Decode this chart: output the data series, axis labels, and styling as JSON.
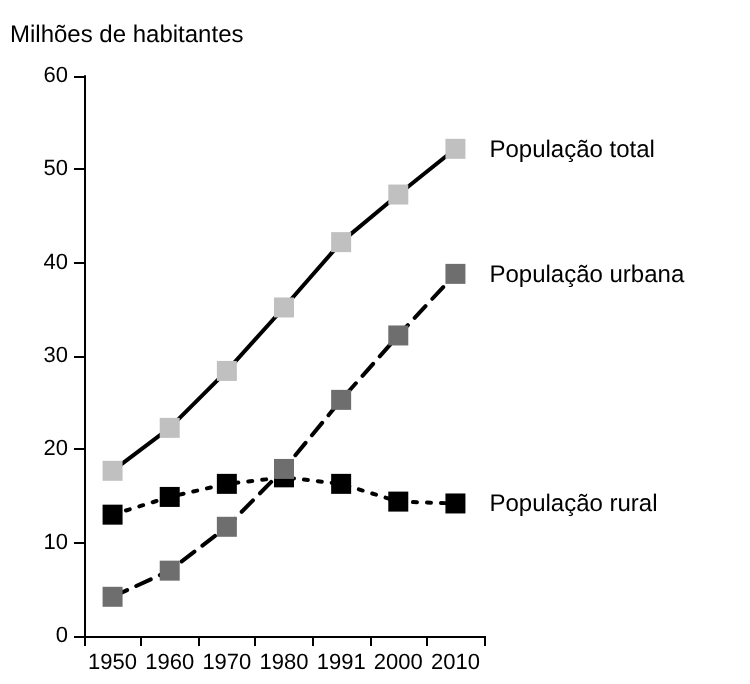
{
  "chart_data": {
    "type": "line",
    "ylabel": "Milhões de habitantes",
    "categories": [
      "1950",
      "1960",
      "1970",
      "1980",
      "1991",
      "2000",
      "2010"
    ],
    "series": [
      {
        "name": "População total",
        "color": "#c0c0c0",
        "line_style": "solid",
        "values": [
          17.7,
          22.3,
          28.4,
          35.2,
          42.2,
          47.3,
          52.2
        ]
      },
      {
        "name": "População urbana",
        "color": "#6e6e6e",
        "line_style": "dashed",
        "values": [
          4.2,
          7.0,
          11.7,
          17.9,
          25.3,
          32.2,
          38.8
        ]
      },
      {
        "name": "População rural",
        "color": "#000000",
        "line_style": "dotted",
        "values": [
          13.0,
          14.9,
          16.3,
          17.0,
          16.3,
          14.4,
          14.2
        ]
      }
    ],
    "ylim": [
      0,
      60
    ],
    "yticks": [
      0,
      10,
      20,
      30,
      40,
      50,
      60
    ],
    "grid": false,
    "legend": false,
    "marker": "square"
  }
}
